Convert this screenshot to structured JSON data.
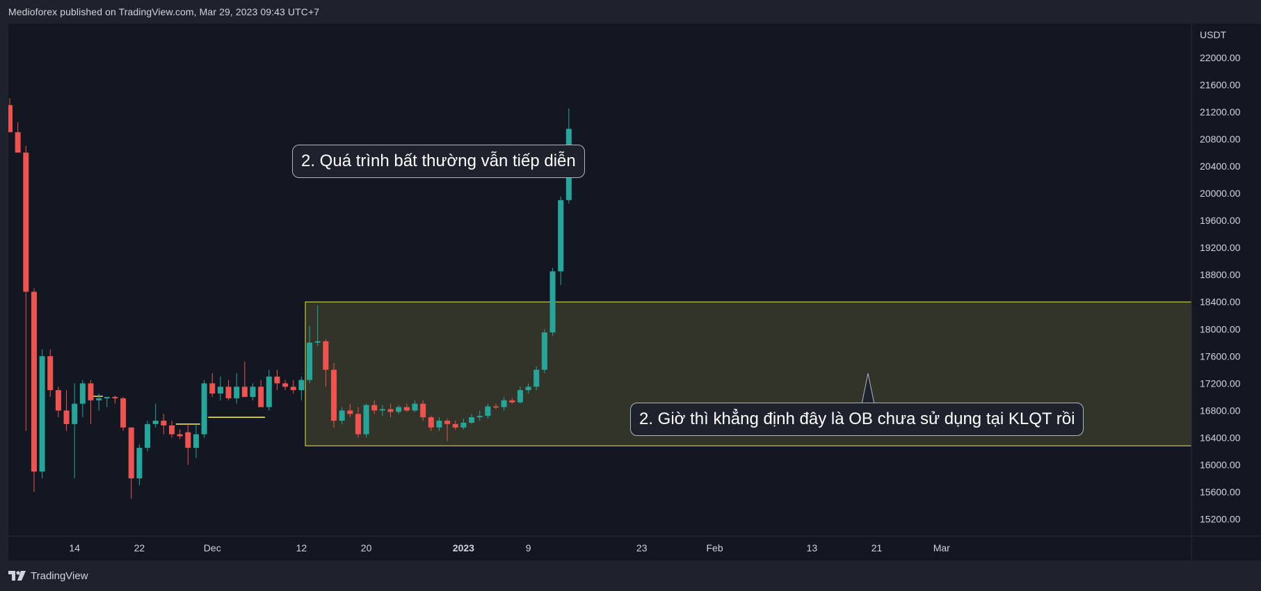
{
  "header": {
    "text": "Medioforex published on TradingView.com, Mar 29, 2023 09:43 UTC+7"
  },
  "footer": {
    "brand": "TradingView"
  },
  "annotations": {
    "top": "2. Quá trình bất thường vẫn tiếp diễn",
    "bottom": "2. Giờ thì khẳng định đây là OB chưa sử dụng tại KLQT rồi"
  },
  "colors": {
    "background": "#131722",
    "frame": "#1e222d",
    "up": "#26a69a",
    "down": "#ef5350",
    "zone_fill": "#3a3a2a",
    "zone_border": "#f0e54b",
    "text": "#d1d4dc"
  },
  "chart_data": {
    "type": "candlestick",
    "currency": "USDT",
    "ylim": [
      14950,
      22500
    ],
    "y_ticks": [
      22000,
      21600,
      21200,
      20800,
      20400,
      20000,
      19600,
      19200,
      18800,
      18400,
      18000,
      17600,
      17200,
      16800,
      16400,
      16000,
      15600,
      15200
    ],
    "x_ticks": [
      {
        "label": "14",
        "bar": 8
      },
      {
        "label": "22",
        "bar": 16
      },
      {
        "label": "Dec",
        "bar": 25
      },
      {
        "label": "12",
        "bar": 36
      },
      {
        "label": "20",
        "bar": 44
      },
      {
        "label": "2023",
        "bar": 56,
        "bold": true
      },
      {
        "label": "9",
        "bar": 64
      },
      {
        "label": "23",
        "bar": 78
      },
      {
        "label": "Feb",
        "bar": 87
      },
      {
        "label": "13",
        "bar": 99
      },
      {
        "label": "21",
        "bar": 107
      },
      {
        "label": "Mar",
        "bar": 115
      }
    ],
    "candles": [
      {
        "o": 21300,
        "h": 21400,
        "l": 20900,
        "c": 20900
      },
      {
        "o": 20900,
        "h": 21050,
        "l": 20600,
        "c": 20600
      },
      {
        "o": 20600,
        "h": 20700,
        "l": 16500,
        "c": 18550
      },
      {
        "o": 18550,
        "h": 18600,
        "l": 15600,
        "c": 15900
      },
      {
        "o": 15900,
        "h": 17700,
        "l": 15800,
        "c": 17600
      },
      {
        "o": 17600,
        "h": 17700,
        "l": 17000,
        "c": 17100
      },
      {
        "o": 17100,
        "h": 17150,
        "l": 16700,
        "c": 16800
      },
      {
        "o": 16800,
        "h": 17100,
        "l": 16500,
        "c": 16600
      },
      {
        "o": 16600,
        "h": 17200,
        "l": 15800,
        "c": 16900
      },
      {
        "o": 16900,
        "h": 17250,
        "l": 16700,
        "c": 17200
      },
      {
        "o": 17200,
        "h": 17250,
        "l": 16600,
        "c": 16950
      },
      {
        "o": 16950,
        "h": 17050,
        "l": 16800,
        "c": 16980
      },
      {
        "o": 16980,
        "h": 17000,
        "l": 16850,
        "c": 17000
      },
      {
        "o": 17000,
        "h": 17020,
        "l": 16900,
        "c": 16980
      },
      {
        "o": 16980,
        "h": 17000,
        "l": 16500,
        "c": 16550
      },
      {
        "o": 16550,
        "h": 16550,
        "l": 15500,
        "c": 15800
      },
      {
        "o": 15800,
        "h": 16300,
        "l": 15700,
        "c": 16250
      },
      {
        "o": 16250,
        "h": 16650,
        "l": 16200,
        "c": 16600
      },
      {
        "o": 16600,
        "h": 16900,
        "l": 16550,
        "c": 16650
      },
      {
        "o": 16650,
        "h": 16750,
        "l": 16450,
        "c": 16580
      },
      {
        "o": 16580,
        "h": 16650,
        "l": 16400,
        "c": 16450
      },
      {
        "o": 16450,
        "h": 16520,
        "l": 16380,
        "c": 16420
      },
      {
        "o": 16480,
        "h": 16600,
        "l": 16000,
        "c": 16250
      },
      {
        "o": 16250,
        "h": 16600,
        "l": 16100,
        "c": 16450
      },
      {
        "o": 16450,
        "h": 17250,
        "l": 16400,
        "c": 17200
      },
      {
        "o": 17200,
        "h": 17350,
        "l": 17000,
        "c": 17050
      },
      {
        "o": 17050,
        "h": 17300,
        "l": 16950,
        "c": 17150
      },
      {
        "o": 17150,
        "h": 17250,
        "l": 16950,
        "c": 16980
      },
      {
        "o": 16980,
        "h": 17350,
        "l": 16900,
        "c": 17150
      },
      {
        "o": 17150,
        "h": 17520,
        "l": 17000,
        "c": 17000
      },
      {
        "o": 17000,
        "h": 17200,
        "l": 16950,
        "c": 17150
      },
      {
        "o": 17150,
        "h": 17250,
        "l": 16850,
        "c": 16850
      },
      {
        "o": 16850,
        "h": 17400,
        "l": 16800,
        "c": 17300
      },
      {
        "o": 17300,
        "h": 17400,
        "l": 17100,
        "c": 17200
      },
      {
        "o": 17200,
        "h": 17250,
        "l": 17100,
        "c": 17150
      },
      {
        "o": 17150,
        "h": 17250,
        "l": 17050,
        "c": 17100
      },
      {
        "o": 17100,
        "h": 17300,
        "l": 16950,
        "c": 17250
      },
      {
        "o": 17250,
        "h": 18050,
        "l": 17200,
        "c": 17800
      },
      {
        "o": 17800,
        "h": 18350,
        "l": 17750,
        "c": 17820
      },
      {
        "o": 17820,
        "h": 17850,
        "l": 17150,
        "c": 17400
      },
      {
        "o": 17400,
        "h": 17500,
        "l": 16550,
        "c": 16650
      },
      {
        "o": 16650,
        "h": 16850,
        "l": 16600,
        "c": 16800
      },
      {
        "o": 16800,
        "h": 16900,
        "l": 16700,
        "c": 16750
      },
      {
        "o": 16750,
        "h": 16850,
        "l": 16400,
        "c": 16450
      },
      {
        "o": 16450,
        "h": 16900,
        "l": 16400,
        "c": 16880
      },
      {
        "o": 16880,
        "h": 16950,
        "l": 16750,
        "c": 16800
      },
      {
        "o": 16800,
        "h": 16880,
        "l": 16720,
        "c": 16820
      },
      {
        "o": 16820,
        "h": 16900,
        "l": 16700,
        "c": 16780
      },
      {
        "o": 16780,
        "h": 16880,
        "l": 16750,
        "c": 16850
      },
      {
        "o": 16850,
        "h": 16900,
        "l": 16780,
        "c": 16800
      },
      {
        "o": 16800,
        "h": 16950,
        "l": 16780,
        "c": 16900
      },
      {
        "o": 16900,
        "h": 16950,
        "l": 16650,
        "c": 16700
      },
      {
        "o": 16700,
        "h": 16720,
        "l": 16500,
        "c": 16550
      },
      {
        "o": 16550,
        "h": 16700,
        "l": 16500,
        "c": 16650
      },
      {
        "o": 16650,
        "h": 16680,
        "l": 16350,
        "c": 16600
      },
      {
        "o": 16600,
        "h": 16650,
        "l": 16520,
        "c": 16550
      },
      {
        "o": 16550,
        "h": 16680,
        "l": 16520,
        "c": 16620
      },
      {
        "o": 16620,
        "h": 16750,
        "l": 16600,
        "c": 16700
      },
      {
        "o": 16700,
        "h": 16800,
        "l": 16650,
        "c": 16720
      },
      {
        "o": 16720,
        "h": 16900,
        "l": 16680,
        "c": 16860
      },
      {
        "o": 16860,
        "h": 16900,
        "l": 16820,
        "c": 16850
      },
      {
        "o": 16850,
        "h": 17000,
        "l": 16800,
        "c": 16950
      },
      {
        "o": 16950,
        "h": 16980,
        "l": 16900,
        "c": 16920
      },
      {
        "o": 16920,
        "h": 17150,
        "l": 16900,
        "c": 17100
      },
      {
        "o": 17100,
        "h": 17200,
        "l": 17050,
        "c": 17150
      },
      {
        "o": 17150,
        "h": 17450,
        "l": 17100,
        "c": 17400
      },
      {
        "o": 17400,
        "h": 18000,
        "l": 17350,
        "c": 17950
      },
      {
        "o": 17950,
        "h": 18900,
        "l": 17900,
        "c": 18850
      },
      {
        "o": 18850,
        "h": 19950,
        "l": 18650,
        "c": 19900
      },
      {
        "o": 19900,
        "h": 21250,
        "l": 19850,
        "c": 20950
      }
    ],
    "zone": {
      "x_start_bar": 37,
      "y_high": 18400,
      "y_low": 16280
    },
    "levels": [
      {
        "price": 17010,
        "x_start_bar": 10.3,
        "x_end_bar": 11.5
      },
      {
        "price": 16600,
        "x_start_bar": 20.5,
        "x_end_bar": 23.5
      },
      {
        "price": 16700,
        "x_start_bar": 24.5,
        "x_end_bar": 31.5
      }
    ]
  }
}
